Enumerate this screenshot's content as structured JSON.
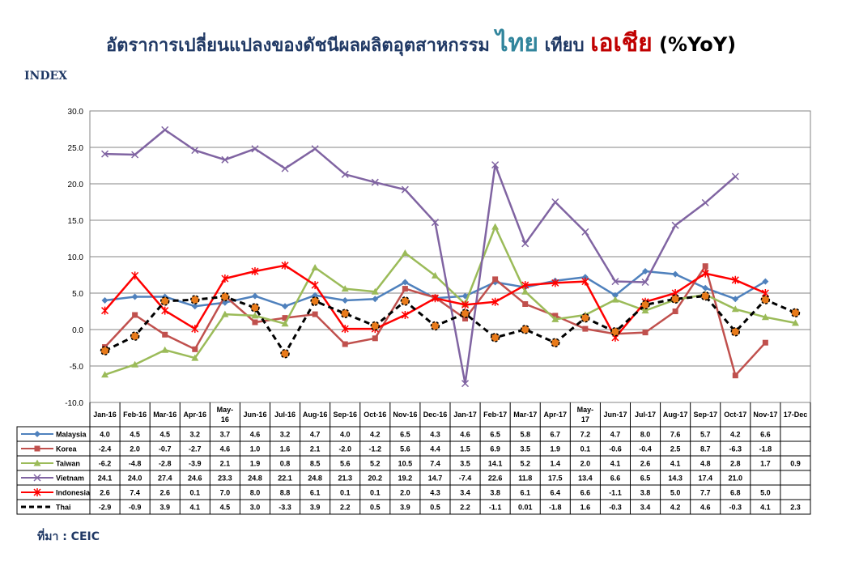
{
  "title": {
    "part1": "อัตราการเปลี่ยนแปลงของดัชนีผลผลิตอุตสาหกรรม ",
    "thai": "ไทย",
    "part2": " เทียบ ",
    "asia": "เอเชีย",
    "part3": "  (%YoY)"
  },
  "index_label": "INDEX",
  "source": "ที่มา : CEIC",
  "chart_data": {
    "type": "line",
    "categories": [
      "Jan-16",
      "Feb-16",
      "Mar-16",
      "Apr-16",
      "May-16",
      "Jun-16",
      "Jul-16",
      "Aug-16",
      "Sep-16",
      "Oct-16",
      "Nov-16",
      "Dec-16",
      "Jan-17",
      "Feb-17",
      "Mar-17",
      "Apr-17",
      "May-17",
      "Jun-17",
      "Jul-17",
      "Aug-17",
      "Sep-17",
      "Oct-17",
      "Nov-17",
      "17-Dec"
    ],
    "y_ticks": [
      "30.0",
      "25.0",
      "20.0",
      "15.0",
      "10.0",
      "5.0",
      "0.0",
      "-5.0",
      "-10.0"
    ],
    "ylim": [
      -10,
      30
    ],
    "grid": true,
    "legend": "table-below",
    "series": [
      {
        "name": "Malaysia",
        "color": "#4f81bd",
        "marker": "diamond",
        "dashed": false,
        "values": [
          4.0,
          4.5,
          4.5,
          3.2,
          3.7,
          4.6,
          3.2,
          4.7,
          4.0,
          4.2,
          6.5,
          4.3,
          4.6,
          6.5,
          5.8,
          6.7,
          7.2,
          4.7,
          8.0,
          7.6,
          5.7,
          4.2,
          6.6,
          null
        ],
        "labels": [
          "4.0",
          "4.5",
          "4.5",
          "3.2",
          "3.7",
          "4.6",
          "3.2",
          "4.7",
          "4.0",
          "4.2",
          "6.5",
          "4.3",
          "4.6",
          "6.5",
          "5.8",
          "6.7",
          "7.2",
          "4.7",
          "8.0",
          "7.6",
          "5.7",
          "4.2",
          "6.6",
          ""
        ]
      },
      {
        "name": "Korea",
        "color": "#c0504d",
        "marker": "square",
        "dashed": false,
        "values": [
          -2.4,
          2.0,
          -0.7,
          -2.7,
          4.6,
          1.0,
          1.6,
          2.1,
          -2.0,
          -1.2,
          5.6,
          4.4,
          1.5,
          6.9,
          3.5,
          1.9,
          0.1,
          -0.6,
          -0.4,
          2.5,
          8.7,
          -6.3,
          -1.8,
          null
        ],
        "labels": [
          "-2.4",
          "2.0",
          "-0.7",
          "-2.7",
          "4.6",
          "1.0",
          "1.6",
          "2.1",
          "-2.0",
          "-1.2",
          "5.6",
          "4.4",
          "1.5",
          "6.9",
          "3.5",
          "1.9",
          "0.1",
          "-0.6",
          "-0.4",
          "2.5",
          "8.7",
          "-6.3",
          "-1.8",
          ""
        ]
      },
      {
        "name": "Taiwan",
        "color": "#9bbb59",
        "marker": "triangle",
        "dashed": false,
        "values": [
          -6.2,
          -4.8,
          -2.8,
          -3.9,
          2.1,
          1.9,
          0.8,
          8.5,
          5.6,
          5.2,
          10.5,
          7.4,
          3.5,
          14.1,
          5.2,
          1.4,
          2.0,
          4.1,
          2.6,
          4.1,
          4.8,
          2.8,
          1.7,
          0.9
        ],
        "labels": [
          "-6.2",
          "-4.8",
          "-2.8",
          "-3.9",
          "2.1",
          "1.9",
          "0.8",
          "8.5",
          "5.6",
          "5.2",
          "10.5",
          "7.4",
          "3.5",
          "14.1",
          "5.2",
          "1.4",
          "2.0",
          "4.1",
          "2.6",
          "4.1",
          "4.8",
          "2.8",
          "1.7",
          "0.9"
        ]
      },
      {
        "name": "Vietnam",
        "color": "#8064a2",
        "marker": "x",
        "dashed": false,
        "values": [
          24.1,
          24.0,
          27.4,
          24.6,
          23.3,
          24.8,
          22.1,
          24.8,
          21.3,
          20.2,
          19.2,
          14.7,
          -7.4,
          22.6,
          11.8,
          17.5,
          13.4,
          6.6,
          6.5,
          14.3,
          17.4,
          21.0,
          null,
          null
        ],
        "labels": [
          "24.1",
          "24.0",
          "27.4",
          "24.6",
          "23.3",
          "24.8",
          "22.1",
          "24.8",
          "21.3",
          "20.2",
          "19.2",
          "14.7",
          "-7.4",
          "22.6",
          "11.8",
          "17.5",
          "13.4",
          "6.6",
          "6.5",
          "14.3",
          "17.4",
          "21.0",
          "",
          ""
        ]
      },
      {
        "name": "Indonesia",
        "color": "#ff0000",
        "marker": "star",
        "dashed": false,
        "values": [
          2.6,
          7.4,
          2.6,
          0.1,
          7.0,
          8.0,
          8.8,
          6.1,
          0.1,
          0.1,
          2.0,
          4.3,
          3.4,
          3.8,
          6.1,
          6.4,
          6.6,
          -1.1,
          3.8,
          5.0,
          7.7,
          6.8,
          5.0,
          null
        ],
        "labels": [
          "2.6",
          "7.4",
          "2.6",
          "0.1",
          "7.0",
          "8.0",
          "8.8",
          "6.1",
          "0.1",
          "0.1",
          "2.0",
          "4.3",
          "3.4",
          "3.8",
          "6.1",
          "6.4",
          "6.6",
          "-1.1",
          "3.8",
          "5.0",
          "7.7",
          "6.8",
          "5.0",
          ""
        ]
      },
      {
        "name": "Thai",
        "color": "#000000",
        "marker": "circle",
        "dashed": true,
        "values": [
          -2.9,
          -0.9,
          3.9,
          4.1,
          4.5,
          3.0,
          -3.3,
          3.9,
          2.2,
          0.5,
          3.9,
          0.5,
          2.2,
          -1.1,
          0.01,
          -1.8,
          1.6,
          -0.3,
          3.4,
          4.2,
          4.6,
          -0.3,
          4.1,
          2.3
        ],
        "labels": [
          "-2.9",
          "-0.9",
          "3.9",
          "4.1",
          "4.5",
          "3.0",
          "-3.3",
          "3.9",
          "2.2",
          "0.5",
          "3.9",
          "0.5",
          "2.2",
          "-1.1",
          "0.01",
          "-1.8",
          "1.6",
          "-0.3",
          "3.4",
          "4.2",
          "4.6",
          "-0.3",
          "4.1",
          "2.3"
        ]
      }
    ]
  }
}
